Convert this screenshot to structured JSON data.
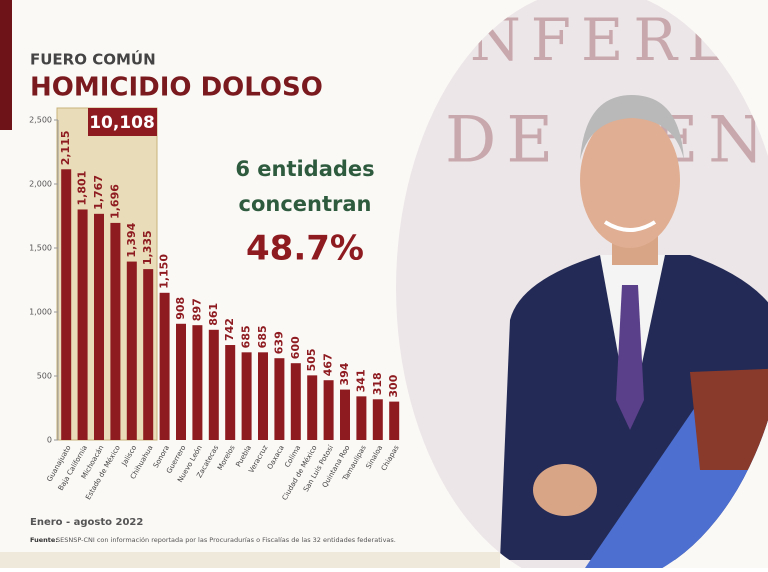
{
  "chart_data": {
    "type": "bar",
    "subtitle": "FUERO COMÚN",
    "title": "HOMICIDIO DOLOSO",
    "categories": [
      "Guanajuato",
      "Baja California",
      "Michoacán",
      "Estado de México",
      "Jalisco",
      "Chihuahua",
      "Sonora",
      "Guerrero",
      "Nuevo León",
      "Zacatecas",
      "Morelos",
      "Puebla",
      "Veracruz",
      "Oaxaca",
      "Colima",
      "Ciudad de México",
      "San Luis Potosí",
      "Quintana Roo",
      "Tamaulipas",
      "Sinaloa",
      "Chiapas"
    ],
    "values": [
      2115,
      1801,
      1767,
      1696,
      1394,
      1335,
      1150,
      908,
      897,
      861,
      742,
      685,
      685,
      639,
      600,
      505,
      467,
      394,
      341,
      318,
      300
    ],
    "value_labels": [
      "2,115",
      "1,801",
      "1,767",
      "1,696",
      "1,394",
      "1,335",
      "1,150",
      "908",
      "897",
      "861",
      "742",
      "685",
      "685",
      "639",
      "600",
      "505",
      "467",
      "394",
      "341",
      "318",
      "300"
    ],
    "color": "#8e1b20",
    "ylim": [
      0,
      2500
    ],
    "yticks": [
      0,
      500,
      {
        "value": 1000,
        "label": "1,000"
      },
      {
        "value": 1500,
        "label": "1,500"
      },
      {
        "value": 2000,
        "label": "2,000"
      },
      {
        "value": 2500,
        "label": "2,500"
      }
    ],
    "highlight_total": "10,108",
    "annotation_lines": [
      "6 entidades",
      "concentran"
    ],
    "annotation_share": "48.7%",
    "period": "Enero - agosto 2022",
    "source_label": "Fuente:",
    "source": "SESNSP-CNI con información reportada por las Procuradurías o Fiscalías de las 32 entidades federativas."
  },
  "photo": {
    "backdrop_lines": [
      "NFERE",
      "DE REN"
    ]
  }
}
